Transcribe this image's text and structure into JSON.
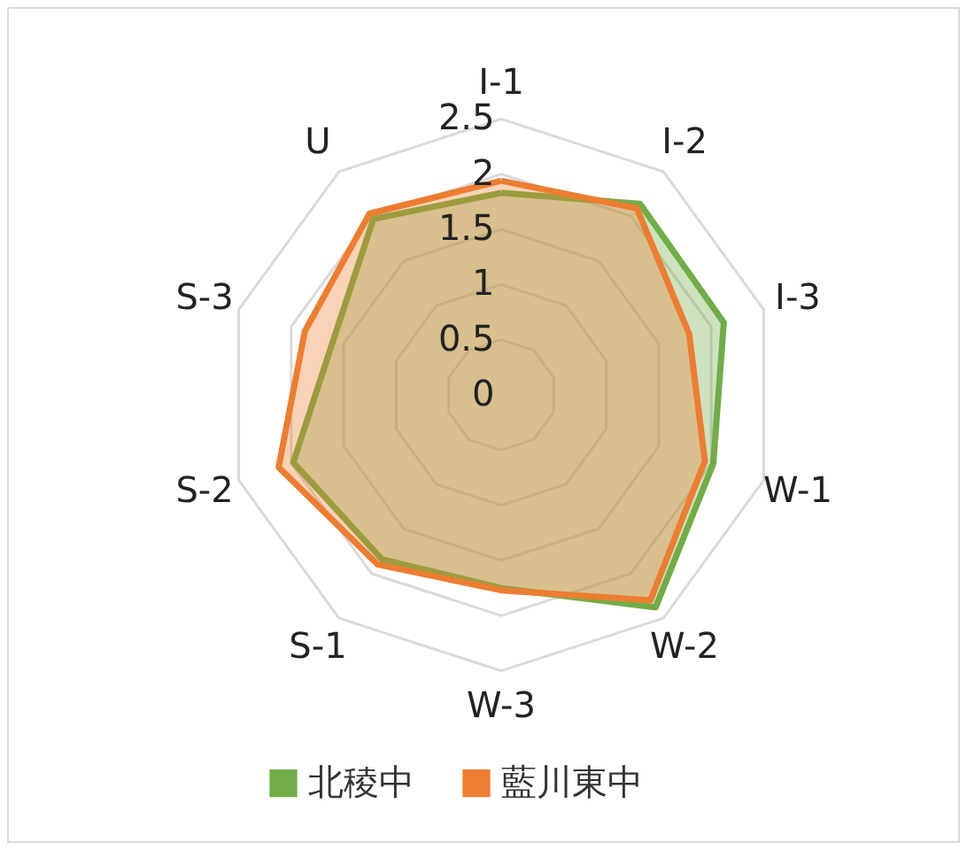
{
  "chart_data": {
    "type": "radar",
    "categories": [
      "I-1",
      "I-2",
      "I-3",
      "W-1",
      "W-2",
      "W-3",
      "S-1",
      "S-2",
      "S-3",
      "U"
    ],
    "series": [
      {
        "name": "北稜中",
        "color": "#70ad47",
        "values": [
          1.83,
          2.14,
          2.12,
          2.02,
          2.38,
          1.75,
          1.84,
          1.98,
          1.6,
          1.97
        ]
      },
      {
        "name": "藍川東中",
        "color": "#ed7d31",
        "values": [
          1.94,
          2.09,
          1.79,
          1.94,
          2.3,
          1.77,
          1.9,
          2.12,
          1.87,
          2.03
        ]
      }
    ],
    "ylim": [
      0,
      2.5
    ],
    "yticks": [
      0,
      0.5,
      1,
      1.5,
      2,
      2.5
    ],
    "grid": true,
    "legend": "bottom"
  }
}
